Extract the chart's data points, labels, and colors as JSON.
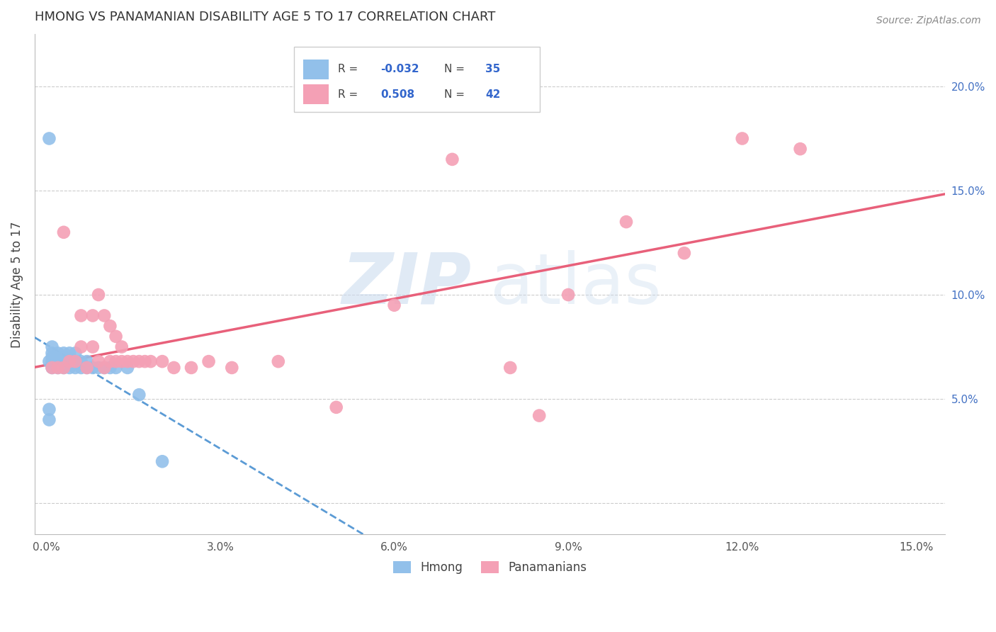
{
  "title": "HMONG VS PANAMANIAN DISABILITY AGE 5 TO 17 CORRELATION CHART",
  "source": "Source: ZipAtlas.com",
  "ylabel": "Disability Age 5 to 17",
  "xlim": [
    -0.002,
    0.155
  ],
  "ylim": [
    -0.015,
    0.225
  ],
  "xticks": [
    0.0,
    0.03,
    0.06,
    0.09,
    0.12,
    0.15
  ],
  "yticks": [
    0.0,
    0.05,
    0.1,
    0.15,
    0.2
  ],
  "xtick_labels": [
    "0.0%",
    "3.0%",
    "6.0%",
    "9.0%",
    "12.0%",
    "15.0%"
  ],
  "ytick_labels_right": [
    "",
    "5.0%",
    "10.0%",
    "15.0%",
    "20.0%"
  ],
  "hmong_color": "#92c0ea",
  "panamanian_color": "#f4a0b5",
  "hmong_line_color": "#5b9bd5",
  "panamanian_line_color": "#e8607a",
  "legend_r_hmong": "-0.032",
  "legend_n_hmong": "35",
  "legend_r_pan": "0.508",
  "legend_n_pan": "42",
  "background_color": "#ffffff",
  "grid_color": "#cccccc",
  "right_tick_color": "#4472c4",
  "hmong_x": [
    0.0005,
    0.0005,
    0.0005,
    0.0005,
    0.001,
    0.001,
    0.001,
    0.001,
    0.001,
    0.002,
    0.002,
    0.002,
    0.002,
    0.003,
    0.003,
    0.003,
    0.003,
    0.004,
    0.004,
    0.004,
    0.005,
    0.005,
    0.005,
    0.006,
    0.006,
    0.007,
    0.007,
    0.008,
    0.009,
    0.01,
    0.011,
    0.012,
    0.014,
    0.016,
    0.02
  ],
  "hmong_y": [
    0.04,
    0.045,
    0.068,
    0.175,
    0.065,
    0.068,
    0.07,
    0.072,
    0.075,
    0.065,
    0.068,
    0.07,
    0.072,
    0.065,
    0.068,
    0.07,
    0.072,
    0.065,
    0.068,
    0.072,
    0.065,
    0.068,
    0.072,
    0.065,
    0.068,
    0.065,
    0.068,
    0.065,
    0.065,
    0.065,
    0.065,
    0.065,
    0.065,
    0.052,
    0.02
  ],
  "pan_x": [
    0.001,
    0.002,
    0.003,
    0.003,
    0.004,
    0.005,
    0.006,
    0.006,
    0.007,
    0.008,
    0.008,
    0.009,
    0.009,
    0.01,
    0.01,
    0.011,
    0.011,
    0.012,
    0.012,
    0.013,
    0.013,
    0.014,
    0.015,
    0.016,
    0.017,
    0.018,
    0.02,
    0.022,
    0.025,
    0.028,
    0.032,
    0.04,
    0.05,
    0.06,
    0.07,
    0.08,
    0.085,
    0.09,
    0.1,
    0.11,
    0.12,
    0.13
  ],
  "pan_y": [
    0.065,
    0.065,
    0.065,
    0.13,
    0.068,
    0.068,
    0.075,
    0.09,
    0.065,
    0.075,
    0.09,
    0.068,
    0.1,
    0.065,
    0.09,
    0.068,
    0.085,
    0.068,
    0.08,
    0.068,
    0.075,
    0.068,
    0.068,
    0.068,
    0.068,
    0.068,
    0.068,
    0.065,
    0.065,
    0.068,
    0.065,
    0.068,
    0.046,
    0.095,
    0.165,
    0.065,
    0.042,
    0.1,
    0.135,
    0.12,
    0.175,
    0.17
  ]
}
